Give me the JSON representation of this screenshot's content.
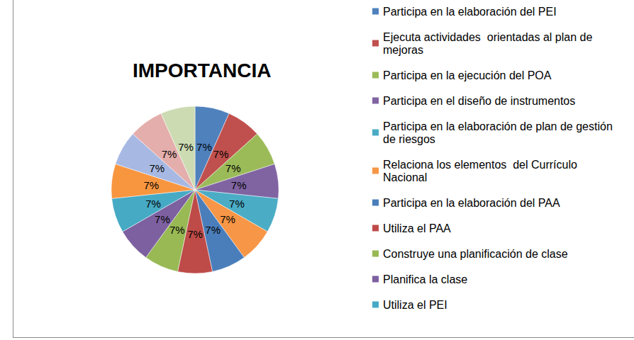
{
  "chart_data": {
    "type": "pie",
    "title": "IMPORTANCIA",
    "categories": [
      "Participa en la elaboración del PEI",
      "Ejecuta actividades  orientadas al plan de mejoras",
      "Participa en la ejecución del POA",
      "Participa en el diseño de instrumentos",
      "Participa en la elaboración de plan de gestión de riesgos",
      "Relaciona los elementos  del Currículo Nacional",
      "Participa en la elaboración del PAA",
      "Utiliza el PAA",
      "Construye una planificación de clase",
      "Planifica la clase",
      "Utiliza el PEI",
      null,
      null,
      null,
      null
    ],
    "values": [
      7,
      7,
      7,
      7,
      7,
      7,
      7,
      7,
      7,
      7,
      7,
      7,
      7,
      7,
      7
    ],
    "value_labels": [
      "7%",
      "7%",
      "7%",
      "7%",
      "7%",
      "7%",
      "7%",
      "7%",
      "7%",
      "7%",
      "7%",
      "7%",
      "7%",
      "7%",
      "7%"
    ],
    "colors": [
      "#4f81bd",
      "#c0504d",
      "#9bbb59",
      "#8064a2",
      "#4bacc6",
      "#f79646",
      "#4a7ebb",
      "#be4b48",
      "#98b954",
      "#7d60a0",
      "#46aac5",
      "#f89640",
      "#a7b9e3",
      "#e4aeac",
      "#cddbb3"
    ],
    "data_labels": true,
    "legend": "right"
  }
}
